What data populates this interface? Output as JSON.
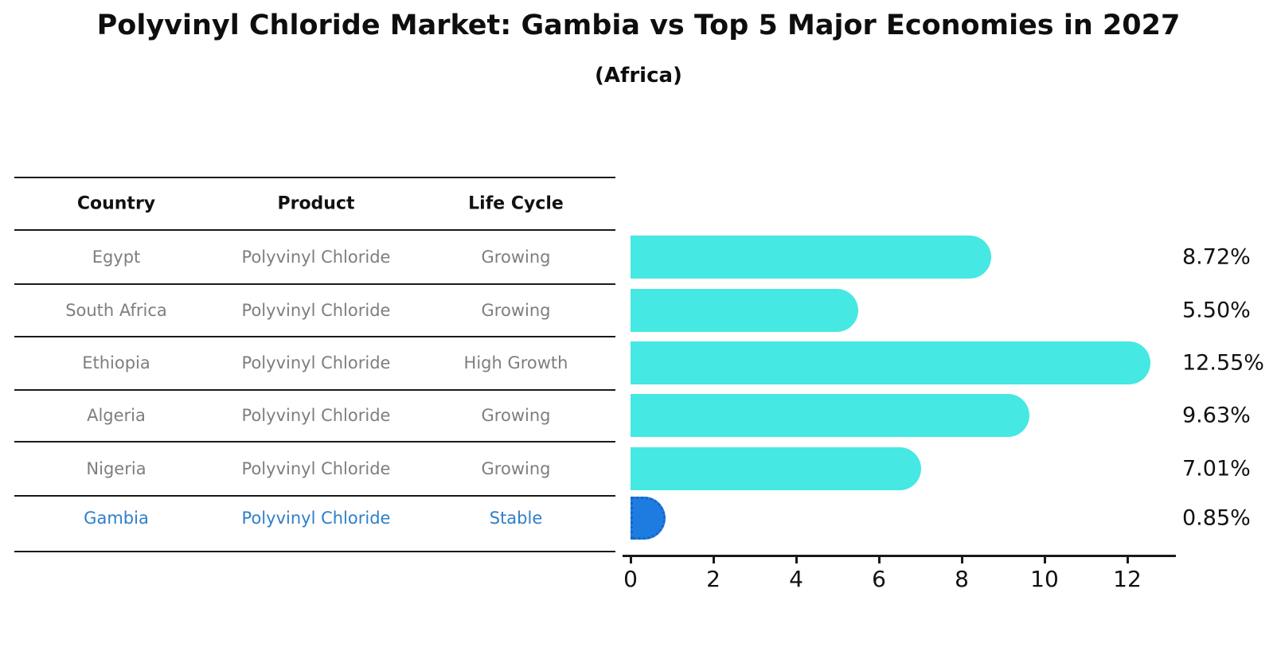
{
  "title": "Polyvinyl Chloride Market: Gambia vs Top 5 Major Economies in 2027",
  "subtitle": "(Africa)",
  "table": {
    "headers": [
      "Country",
      "Product",
      "Life Cycle"
    ],
    "rows": [
      {
        "country": "Egypt",
        "product": "Polyvinyl Chloride",
        "life_cycle": "Growing",
        "highlight": false
      },
      {
        "country": "South Africa",
        "product": "Polyvinyl Chloride",
        "life_cycle": "Growing",
        "highlight": false
      },
      {
        "country": "Ethiopia",
        "product": "Polyvinyl Chloride",
        "life_cycle": "High Growth",
        "highlight": false
      },
      {
        "country": "Algeria",
        "product": "Polyvinyl Chloride",
        "life_cycle": "Growing",
        "highlight": false
      },
      {
        "country": "Nigeria",
        "product": "Polyvinyl Chloride",
        "life_cycle": "Growing",
        "highlight": false
      },
      {
        "country": "Gambia",
        "product": "Polyvinyl Chloride",
        "life_cycle": "Stable",
        "highlight": true
      }
    ]
  },
  "chart_data": {
    "type": "bar",
    "orientation": "horizontal",
    "title": "Polyvinyl Chloride Market: Gambia vs Top 5 Major Economies in 2027 (Africa)",
    "categories": [
      "Egypt",
      "South Africa",
      "Ethiopia",
      "Algeria",
      "Nigeria",
      "Gambia"
    ],
    "values": [
      8.72,
      5.5,
      12.55,
      9.63,
      7.01,
      0.85
    ],
    "value_labels": [
      "8.72%",
      "5.50%",
      "12.55%",
      "9.63%",
      "7.01%",
      "0.85%"
    ],
    "x_ticks": [
      0,
      2,
      4,
      6,
      8,
      10,
      12
    ],
    "x_tick_labels": [
      "0",
      "2",
      "4",
      "6",
      "8",
      "10",
      "12"
    ],
    "xlim": [
      0,
      13.18
    ],
    "grid": false,
    "legend": "none",
    "highlight_index": 5,
    "bar_color": "#45e8e2",
    "highlight_bar_color": "#1e7ce0",
    "highlight_border_color": "#1565c8",
    "highlight_text_color": "#2e7fc9",
    "table_text_color": "#7e7e7e",
    "text_color": "#111111"
  }
}
